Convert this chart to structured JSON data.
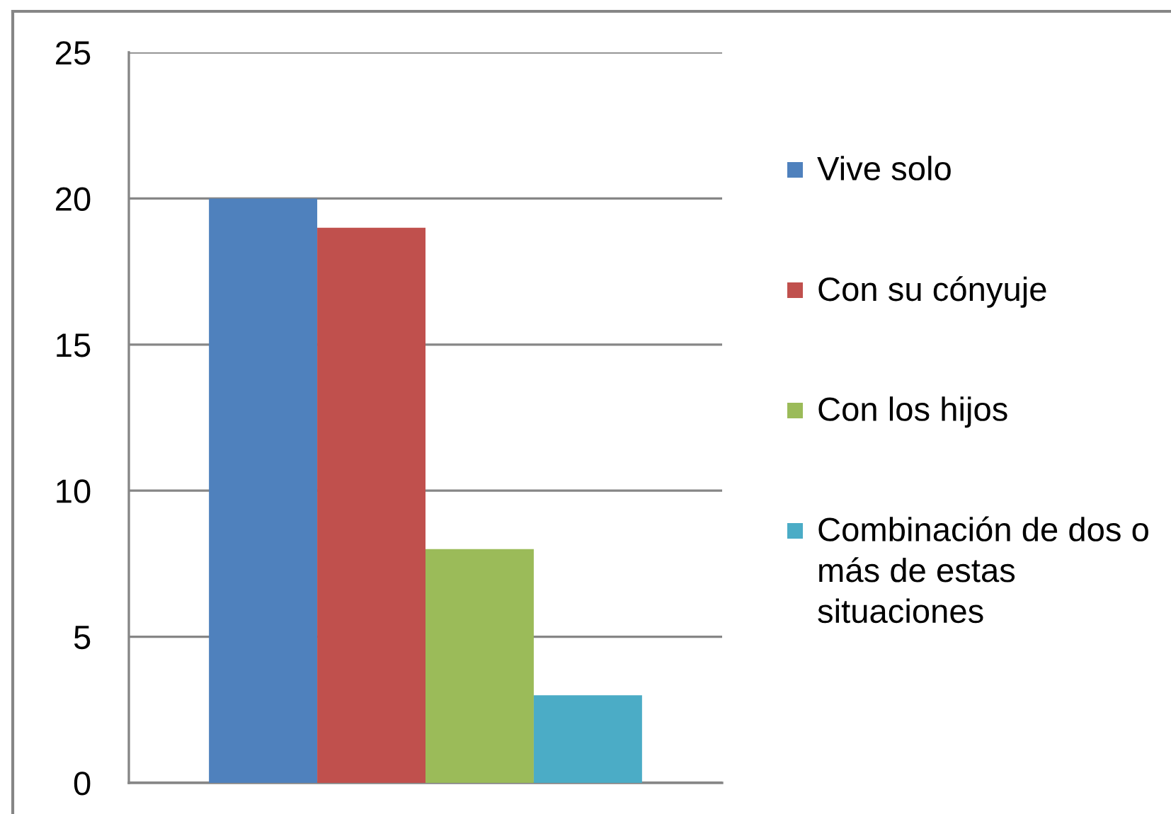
{
  "chart_data": {
    "type": "bar",
    "categories": [
      null
    ],
    "series": [
      {
        "name": "Vive solo",
        "color": "#4f81bd",
        "values": [
          20
        ]
      },
      {
        "name": "Con su cónyuje",
        "color": "#c0504d",
        "values": [
          19
        ]
      },
      {
        "name": "Con los hijos",
        "color": "#9bbb59",
        "values": [
          8
        ]
      },
      {
        "name": "Combinación de dos o más de estas situaciones",
        "color": "#4bacc6",
        "values": [
          3
        ]
      }
    ],
    "ylim": [
      0,
      25
    ],
    "yticks": [
      0,
      5,
      10,
      15,
      20,
      25
    ],
    "grid": "y",
    "legend": "right",
    "tick_labels": "y"
  }
}
